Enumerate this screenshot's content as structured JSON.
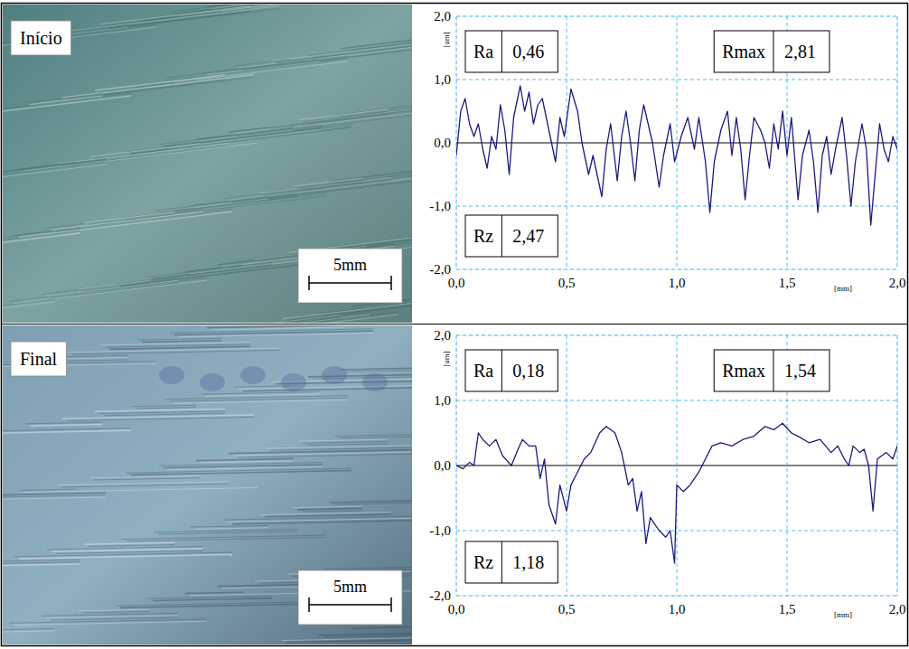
{
  "images": [
    {
      "label": "Início",
      "scale_label": "5mm"
    },
    {
      "label": "Final",
      "scale_label": "5mm"
    }
  ],
  "chart_data": [
    {
      "type": "line",
      "x_label": "[mm]",
      "y_label": "[um]",
      "color": "#1a1a80",
      "grid": true,
      "xlim": [
        0,
        2
      ],
      "ylim": [
        -2,
        2
      ],
      "xticks": [
        {
          "value": 0,
          "label": "0,0"
        },
        {
          "value": 0.5,
          "label": "0,5"
        },
        {
          "value": 1,
          "label": "1,0"
        },
        {
          "value": 1.5,
          "label": "1,5"
        },
        {
          "value": 2,
          "label": "2,0"
        }
      ],
      "yticks": [
        {
          "value": -2,
          "label": "-2,0"
        },
        {
          "value": -1,
          "label": "-1,0"
        },
        {
          "value": 0,
          "label": "0,0"
        },
        {
          "value": 1,
          "label": "1,0"
        },
        {
          "value": 2,
          "label": "2,0"
        }
      ],
      "annotations": [
        {
          "label": "Ra",
          "value": "0,46"
        },
        {
          "label": "Rmax",
          "value": "2,81"
        },
        {
          "label": "Rz",
          "value": "2,47"
        }
      ],
      "x": [
        0,
        0.02,
        0.04,
        0.06,
        0.08,
        0.1,
        0.12,
        0.14,
        0.16,
        0.18,
        0.2,
        0.22,
        0.24,
        0.26,
        0.29,
        0.31,
        0.33,
        0.35,
        0.37,
        0.39,
        0.42,
        0.45,
        0.47,
        0.49,
        0.52,
        0.55,
        0.57,
        0.6,
        0.62,
        0.66,
        0.68,
        0.7,
        0.73,
        0.75,
        0.77,
        0.79,
        0.81,
        0.83,
        0.85,
        0.87,
        0.89,
        0.92,
        0.94,
        0.97,
        0.99,
        1.02,
        1.05,
        1.08,
        1.1,
        1.13,
        1.15,
        1.17,
        1.2,
        1.23,
        1.25,
        1.27,
        1.29,
        1.31,
        1.33,
        1.35,
        1.38,
        1.4,
        1.42,
        1.44,
        1.46,
        1.48,
        1.5,
        1.52,
        1.55,
        1.57,
        1.6,
        1.62,
        1.64,
        1.66,
        1.68,
        1.7,
        1.72,
        1.75,
        1.77,
        1.79,
        1.81,
        1.84,
        1.86,
        1.88,
        1.9,
        1.92,
        1.94,
        1.96,
        1.98,
        2
      ],
      "values": [
        -0.2,
        0.5,
        0.7,
        0.3,
        0.1,
        0.3,
        -0.1,
        -0.4,
        0.1,
        -0.1,
        0.6,
        0.2,
        -0.5,
        0.4,
        0.9,
        0.5,
        0.8,
        0.3,
        0.6,
        0.7,
        0.2,
        -0.3,
        0.4,
        0.1,
        0.85,
        0.5,
        0,
        -0.5,
        -0.2,
        -0.85,
        -0.1,
        0.3,
        -0.6,
        0.1,
        0.5,
        0,
        -0.6,
        0.2,
        0.6,
        0.3,
        0,
        -0.7,
        -0.2,
        0.3,
        -0.3,
        0.1,
        0.4,
        -0.1,
        0.4,
        -0.3,
        -1.1,
        -0.3,
        0.2,
        0.5,
        -0.2,
        0.4,
        -0.1,
        -0.9,
        -0.2,
        0.4,
        0.2,
        0,
        -0.4,
        0.3,
        -0.1,
        0.5,
        -0.2,
        0.4,
        -0.9,
        -0.2,
        0.2,
        -0.3,
        -1.1,
        -0.2,
        0.1,
        -0.5,
        -0.1,
        0.4,
        -0.2,
        -1,
        -0.3,
        0.3,
        -0.1,
        -1.3,
        -0.5,
        0.3,
        -0.1,
        -0.3,
        0.1,
        -0.1
      ]
    },
    {
      "type": "line",
      "x_label": "[mm]",
      "y_label": "[um]",
      "color": "#1a1a80",
      "grid": true,
      "xlim": [
        0,
        2
      ],
      "ylim": [
        -2,
        2
      ],
      "xticks": [
        {
          "value": 0,
          "label": "0,0"
        },
        {
          "value": 0.5,
          "label": "0,5"
        },
        {
          "value": 1,
          "label": "1,0"
        },
        {
          "value": 1.5,
          "label": "1,5"
        },
        {
          "value": 2,
          "label": "2,0"
        }
      ],
      "yticks": [
        {
          "value": -2,
          "label": "-2,0"
        },
        {
          "value": -1,
          "label": "-1,0"
        },
        {
          "value": 0,
          "label": "0,0"
        },
        {
          "value": 1,
          "label": "1,0"
        },
        {
          "value": 2,
          "label": "2,0"
        }
      ],
      "annotations": [
        {
          "label": "Ra",
          "value": "0,18"
        },
        {
          "label": "Rmax",
          "value": "1,54"
        },
        {
          "label": "Rz",
          "value": "1,18"
        }
      ],
      "x": [
        0,
        0.03,
        0.06,
        0.08,
        0.1,
        0.12,
        0.15,
        0.18,
        0.21,
        0.25,
        0.28,
        0.3,
        0.33,
        0.36,
        0.38,
        0.4,
        0.42,
        0.45,
        0.47,
        0.5,
        0.52,
        0.55,
        0.58,
        0.61,
        0.65,
        0.68,
        0.72,
        0.75,
        0.78,
        0.8,
        0.82,
        0.84,
        0.86,
        0.88,
        0.9,
        0.92,
        0.95,
        0.97,
        0.99,
        1,
        1.03,
        1.06,
        1.1,
        1.13,
        1.16,
        1.2,
        1.25,
        1.3,
        1.35,
        1.4,
        1.44,
        1.48,
        1.52,
        1.55,
        1.6,
        1.65,
        1.7,
        1.73,
        1.76,
        1.78,
        1.8,
        1.83,
        1.85,
        1.87,
        1.89,
        1.91,
        1.95,
        1.98,
        2
      ],
      "values": [
        0,
        -0.05,
        0.05,
        0,
        0.5,
        0.4,
        0.3,
        0.4,
        0.15,
        0,
        0.25,
        0.4,
        0.3,
        0.3,
        -0.2,
        0.1,
        -0.6,
        -0.9,
        -0.3,
        -0.7,
        -0.3,
        -0.1,
        0.1,
        0.2,
        0.5,
        0.6,
        0.5,
        0.2,
        -0.3,
        -0.2,
        -0.7,
        -0.4,
        -1.2,
        -0.8,
        -0.9,
        -1,
        -1.1,
        -1,
        -1.5,
        -0.3,
        -0.4,
        -0.3,
        -0.1,
        0.1,
        0.3,
        0.35,
        0.3,
        0.4,
        0.45,
        0.6,
        0.55,
        0.65,
        0.5,
        0.45,
        0.35,
        0.4,
        0.2,
        0.3,
        0.1,
        0,
        0.3,
        0.2,
        0.25,
        0,
        -0.7,
        0.1,
        0.2,
        0.1,
        0.3
      ]
    }
  ]
}
